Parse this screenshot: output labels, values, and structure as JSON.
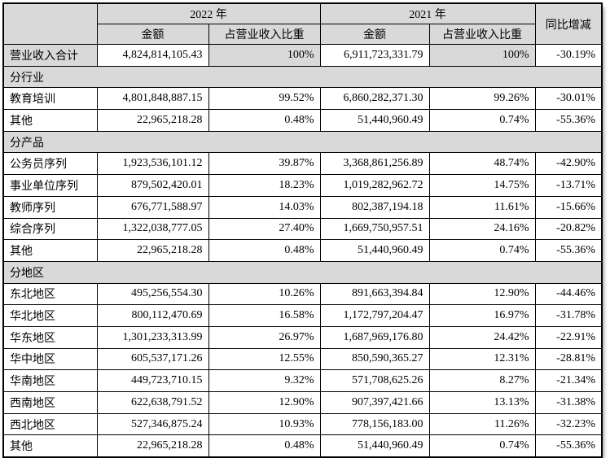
{
  "table": {
    "header": {
      "corner": "",
      "year_2022": "2022 年",
      "year_2021": "2021 年",
      "amount": "金额",
      "pct": "占营业收入比重",
      "yoy": "同比增减"
    },
    "rows": [
      {
        "type": "total",
        "label": "营业收入合计",
        "amount_2022": "4,824,814,105.43",
        "pct_2022": "100%",
        "amount_2021": "6,911,723,331.79",
        "pct_2021": "100%",
        "yoy": "-30.19%"
      },
      {
        "type": "section",
        "label": "分行业"
      },
      {
        "type": "data",
        "label": "教育培训",
        "amount_2022": "4,801,848,887.15",
        "pct_2022": "99.52%",
        "amount_2021": "6,860,282,371.30",
        "pct_2021": "99.26%",
        "yoy": "-30.01%"
      },
      {
        "type": "data",
        "label": "其他",
        "amount_2022": "22,965,218.28",
        "pct_2022": "0.48%",
        "amount_2021": "51,440,960.49",
        "pct_2021": "0.74%",
        "yoy": "-55.36%"
      },
      {
        "type": "section",
        "label": "分产品"
      },
      {
        "type": "data",
        "label": "公务员序列",
        "amount_2022": "1,923,536,101.12",
        "pct_2022": "39.87%",
        "amount_2021": "3,368,861,256.89",
        "pct_2021": "48.74%",
        "yoy": "-42.90%"
      },
      {
        "type": "data",
        "label": "事业单位序列",
        "amount_2022": "879,502,420.01",
        "pct_2022": "18.23%",
        "amount_2021": "1,019,282,962.72",
        "pct_2021": "14.75%",
        "yoy": "-13.71%"
      },
      {
        "type": "data",
        "label": "教师序列",
        "amount_2022": "676,771,588.97",
        "pct_2022": "14.03%",
        "amount_2021": "802,387,194.18",
        "pct_2021": "11.61%",
        "yoy": "-15.66%"
      },
      {
        "type": "data",
        "label": "综合序列",
        "amount_2022": "1,322,038,777.05",
        "pct_2022": "27.40%",
        "amount_2021": "1,669,750,957.51",
        "pct_2021": "24.16%",
        "yoy": "-20.82%"
      },
      {
        "type": "data",
        "label": "其他",
        "amount_2022": "22,965,218.28",
        "pct_2022": "0.48%",
        "amount_2021": "51,440,960.49",
        "pct_2021": "0.74%",
        "yoy": "-55.36%"
      },
      {
        "type": "section",
        "label": "分地区"
      },
      {
        "type": "data",
        "label": "东北地区",
        "amount_2022": "495,256,554.30",
        "pct_2022": "10.26%",
        "amount_2021": "891,663,394.84",
        "pct_2021": "12.90%",
        "yoy": "-44.46%"
      },
      {
        "type": "data",
        "label": "华北地区",
        "amount_2022": "800,112,470.69",
        "pct_2022": "16.58%",
        "amount_2021": "1,172,797,204.47",
        "pct_2021": "16.97%",
        "yoy": "-31.78%"
      },
      {
        "type": "data",
        "label": "华东地区",
        "amount_2022": "1,301,233,313.99",
        "pct_2022": "26.97%",
        "amount_2021": "1,687,969,176.80",
        "pct_2021": "24.42%",
        "yoy": "-22.91%"
      },
      {
        "type": "data",
        "label": "华中地区",
        "amount_2022": "605,537,171.26",
        "pct_2022": "12.55%",
        "amount_2021": "850,590,365.27",
        "pct_2021": "12.31%",
        "yoy": "-28.81%"
      },
      {
        "type": "data",
        "label": "华南地区",
        "amount_2022": "449,723,710.15",
        "pct_2022": "9.32%",
        "amount_2021": "571,708,625.26",
        "pct_2021": "8.27%",
        "yoy": "-21.34%"
      },
      {
        "type": "data",
        "label": "西南地区",
        "amount_2022": "622,638,791.52",
        "pct_2022": "12.90%",
        "amount_2021": "907,397,421.66",
        "pct_2021": "13.13%",
        "yoy": "-31.38%"
      },
      {
        "type": "data",
        "label": "西北地区",
        "amount_2022": "527,346,875.24",
        "pct_2022": "10.93%",
        "amount_2021": "778,156,183.00",
        "pct_2021": "11.26%",
        "yoy": "-32.23%"
      },
      {
        "type": "data",
        "label": "其他",
        "amount_2022": "22,965,218.28",
        "pct_2022": "0.48%",
        "amount_2021": "51,440,960.49",
        "pct_2021": "0.74%",
        "yoy": "-55.36%"
      }
    ]
  }
}
